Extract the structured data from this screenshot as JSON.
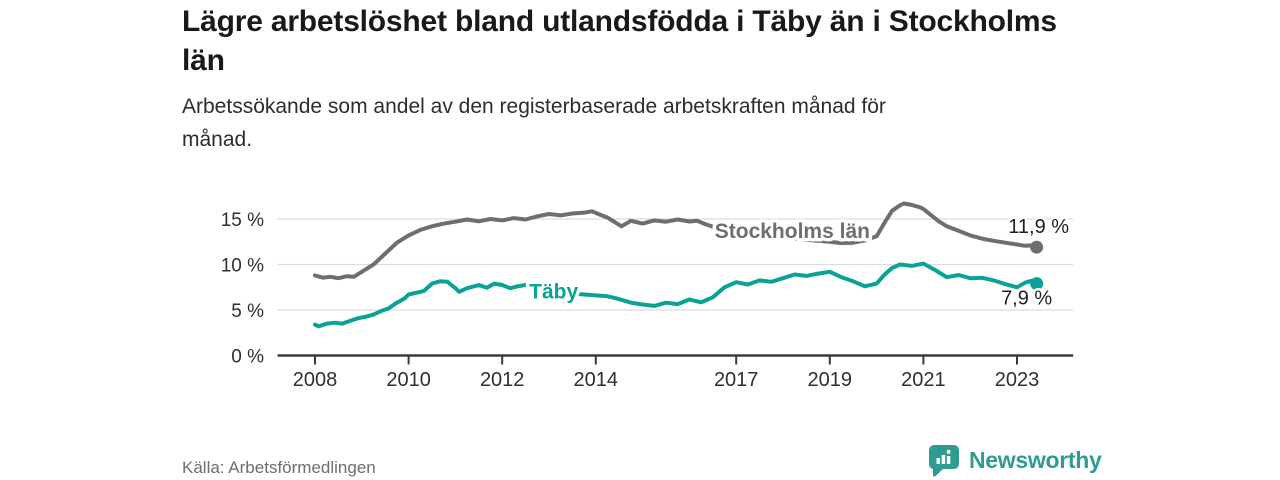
{
  "footer": {
    "source": "Källa: Arbetsförmedlingen",
    "brand": "Newsworthy",
    "brand_icon": "speech-bubble-bar-chart"
  },
  "colors": {
    "stockholm_gray": "#6e6e72",
    "taby_teal": "#0aa296",
    "axis": "#3b3b3b",
    "grid": "#dcdcdc",
    "tick_text": "#2f2f2f",
    "value_text": "#1f1f1f",
    "brand_teal": "#2f9c92",
    "source_text": "#6e6e6e"
  },
  "chart_data": {
    "type": "line",
    "title": "Lägre arbetslöshet bland utlandsfödda i Täby än i Stockholms län",
    "subtitle": "Arbetssökande som andel av den registerbaserade arbetskraften månad för månad.",
    "xlabel": "",
    "ylabel": "",
    "grid": "horizontal",
    "legend_position": "inline-labels",
    "xlim": [
      2007.2,
      2024.2
    ],
    "ylim": [
      0,
      17.5
    ],
    "y_ticks": [
      {
        "value": 0,
        "label": "0 %"
      },
      {
        "value": 5,
        "label": "5 %"
      },
      {
        "value": 10,
        "label": "10 %"
      },
      {
        "value": 15,
        "label": "15 %"
      }
    ],
    "x_ticks": [
      {
        "year": 2008,
        "label": "2008"
      },
      {
        "year": 2010,
        "label": "2010"
      },
      {
        "year": 2012,
        "label": "2012"
      },
      {
        "year": 2014,
        "label": "2014"
      },
      {
        "year": 2017,
        "label": "2017"
      },
      {
        "year": 2019,
        "label": "2019"
      },
      {
        "year": 2021,
        "label": "2021"
      },
      {
        "year": 2023,
        "label": "2023"
      }
    ],
    "series": [
      {
        "name": "Stockholms län",
        "slug": "stockholms-lan",
        "color": "#6e6e72",
        "end_label": "11,9 %",
        "end_value": 11.9,
        "label_pos": {
          "x": 2018.2,
          "y": 13.7
        },
        "points": [
          [
            2008,
            8.8
          ],
          [
            2008.17,
            8.55
          ],
          [
            2008.33,
            8.65
          ],
          [
            2008.5,
            8.5
          ],
          [
            2008.67,
            8.7
          ],
          [
            2008.83,
            8.65
          ],
          [
            2009,
            9.2
          ],
          [
            2009.25,
            10.0
          ],
          [
            2009.5,
            11.2
          ],
          [
            2009.75,
            12.4
          ],
          [
            2010,
            13.2
          ],
          [
            2010.25,
            13.8
          ],
          [
            2010.5,
            14.2
          ],
          [
            2010.75,
            14.5
          ],
          [
            2011,
            14.7
          ],
          [
            2011.25,
            14.95
          ],
          [
            2011.5,
            14.75
          ],
          [
            2011.75,
            15.0
          ],
          [
            2012,
            14.85
          ],
          [
            2012.25,
            15.1
          ],
          [
            2012.5,
            14.95
          ],
          [
            2012.75,
            15.3
          ],
          [
            2013,
            15.55
          ],
          [
            2013.25,
            15.4
          ],
          [
            2013.5,
            15.6
          ],
          [
            2013.75,
            15.7
          ],
          [
            2013.92,
            15.85
          ],
          [
            2014.08,
            15.5
          ],
          [
            2014.25,
            15.15
          ],
          [
            2014.42,
            14.6
          ],
          [
            2014.55,
            14.2
          ],
          [
            2014.75,
            14.8
          ],
          [
            2015,
            14.5
          ],
          [
            2015.25,
            14.85
          ],
          [
            2015.5,
            14.7
          ],
          [
            2015.75,
            14.95
          ],
          [
            2016,
            14.72
          ],
          [
            2016.17,
            14.8
          ],
          [
            2016.33,
            14.45
          ],
          [
            2016.5,
            14.15
          ],
          [
            2016.67,
            13.95
          ],
          [
            2017,
            13.75
          ],
          [
            2017.25,
            13.55
          ],
          [
            2017.5,
            13.35
          ],
          [
            2017.75,
            13.15
          ],
          [
            2018,
            13.0
          ],
          [
            2018.25,
            12.85
          ],
          [
            2018.5,
            12.7
          ],
          [
            2018.75,
            12.6
          ],
          [
            2019,
            12.5
          ],
          [
            2019.25,
            12.35
          ],
          [
            2019.5,
            12.4
          ],
          [
            2019.75,
            12.65
          ],
          [
            2020,
            13.1
          ],
          [
            2020.17,
            14.6
          ],
          [
            2020.33,
            15.9
          ],
          [
            2020.5,
            16.5
          ],
          [
            2020.58,
            16.7
          ],
          [
            2020.75,
            16.55
          ],
          [
            2020.92,
            16.3
          ],
          [
            2021,
            16.1
          ],
          [
            2021.17,
            15.4
          ],
          [
            2021.33,
            14.75
          ],
          [
            2021.5,
            14.2
          ],
          [
            2021.75,
            13.7
          ],
          [
            2022,
            13.2
          ],
          [
            2022.25,
            12.85
          ],
          [
            2022.5,
            12.6
          ],
          [
            2022.75,
            12.4
          ],
          [
            2023,
            12.2
          ],
          [
            2023.17,
            12.05
          ],
          [
            2023.3,
            12.1
          ],
          [
            2023.42,
            11.9
          ]
        ]
      },
      {
        "name": "Täby",
        "slug": "taby",
        "color": "#0aa296",
        "end_label": "7,9 %",
        "end_value": 7.9,
        "label_pos": {
          "x": 2013.1,
          "y": 7.05
        },
        "points": [
          [
            2008,
            3.4
          ],
          [
            2008.08,
            3.2
          ],
          [
            2008.25,
            3.5
          ],
          [
            2008.42,
            3.6
          ],
          [
            2008.58,
            3.5
          ],
          [
            2008.75,
            3.8
          ],
          [
            2008.92,
            4.1
          ],
          [
            2009.08,
            4.25
          ],
          [
            2009.25,
            4.5
          ],
          [
            2009.42,
            4.9
          ],
          [
            2009.58,
            5.2
          ],
          [
            2009.75,
            5.8
          ],
          [
            2009.92,
            6.3
          ],
          [
            2010,
            6.7
          ],
          [
            2010.17,
            6.9
          ],
          [
            2010.33,
            7.1
          ],
          [
            2010.5,
            7.9
          ],
          [
            2010.67,
            8.15
          ],
          [
            2010.83,
            8.1
          ],
          [
            2011,
            7.4
          ],
          [
            2011.08,
            7.0
          ],
          [
            2011.25,
            7.4
          ],
          [
            2011.5,
            7.75
          ],
          [
            2011.67,
            7.45
          ],
          [
            2011.83,
            7.9
          ],
          [
            2012,
            7.75
          ],
          [
            2012.17,
            7.4
          ],
          [
            2012.33,
            7.6
          ],
          [
            2012.5,
            7.75
          ],
          [
            2012.67,
            7.3
          ],
          [
            2012.83,
            7.2
          ],
          [
            2013,
            7.0
          ],
          [
            2013.25,
            6.9
          ],
          [
            2013.5,
            6.8
          ],
          [
            2013.75,
            6.7
          ],
          [
            2014,
            6.6
          ],
          [
            2014.25,
            6.5
          ],
          [
            2014.5,
            6.2
          ],
          [
            2014.75,
            5.8
          ],
          [
            2015,
            5.6
          ],
          [
            2015.25,
            5.45
          ],
          [
            2015.5,
            5.8
          ],
          [
            2015.75,
            5.65
          ],
          [
            2016,
            6.15
          ],
          [
            2016.25,
            5.85
          ],
          [
            2016.5,
            6.4
          ],
          [
            2016.75,
            7.5
          ],
          [
            2017,
            8.05
          ],
          [
            2017.25,
            7.8
          ],
          [
            2017.5,
            8.25
          ],
          [
            2017.75,
            8.1
          ],
          [
            2018,
            8.5
          ],
          [
            2018.25,
            8.9
          ],
          [
            2018.5,
            8.75
          ],
          [
            2018.75,
            9.0
          ],
          [
            2019,
            9.2
          ],
          [
            2019.25,
            8.6
          ],
          [
            2019.5,
            8.15
          ],
          [
            2019.75,
            7.6
          ],
          [
            2020,
            7.9
          ],
          [
            2020.17,
            8.9
          ],
          [
            2020.33,
            9.6
          ],
          [
            2020.5,
            10.0
          ],
          [
            2020.75,
            9.85
          ],
          [
            2021,
            10.1
          ],
          [
            2021.25,
            9.4
          ],
          [
            2021.5,
            8.6
          ],
          [
            2021.75,
            8.85
          ],
          [
            2022,
            8.5
          ],
          [
            2022.25,
            8.55
          ],
          [
            2022.5,
            8.25
          ],
          [
            2022.75,
            7.85
          ],
          [
            2023,
            7.5
          ],
          [
            2023.17,
            8.0
          ],
          [
            2023.3,
            8.2
          ],
          [
            2023.42,
            7.9
          ]
        ]
      }
    ]
  }
}
